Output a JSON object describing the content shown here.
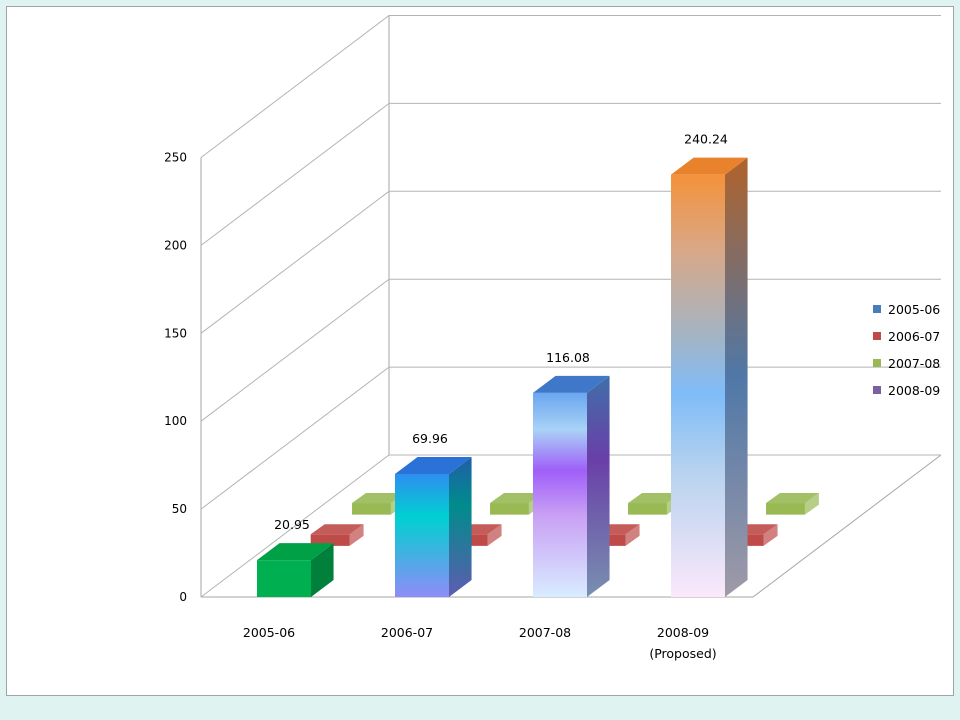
{
  "chart_data": {
    "type": "bar",
    "three_d": true,
    "categories": [
      "2005-06",
      "2006-07",
      "2007-08",
      "2008-09"
    ],
    "category_sublabels": [
      "",
      "",
      "",
      "(Proposed)"
    ],
    "y_ticks": [
      0,
      50,
      100,
      150,
      200,
      250
    ],
    "ylim": [
      0,
      250
    ],
    "grid": true,
    "legend_position": "right",
    "series": [
      {
        "name": "2005-06",
        "color": "#4a7ebb",
        "values": [
          20.95,
          69.96,
          116.08,
          240.24
        ],
        "data_labels": [
          "20.95",
          "69.96",
          "116.08",
          "240.24"
        ]
      },
      {
        "name": "2006-07",
        "color": "#be4b48",
        "values": [
          3,
          3,
          3,
          3
        ]
      },
      {
        "name": "2007-08",
        "color": "#98b954",
        "values": [
          3,
          3,
          3,
          3
        ]
      },
      {
        "name": "2008-09",
        "color": "#7d60a0",
        "values": [
          0,
          0,
          0,
          0
        ]
      }
    ],
    "bar_colors": [
      "#00b050",
      "#1fb8d8",
      "#a070f0",
      "#b0c4d8"
    ]
  }
}
